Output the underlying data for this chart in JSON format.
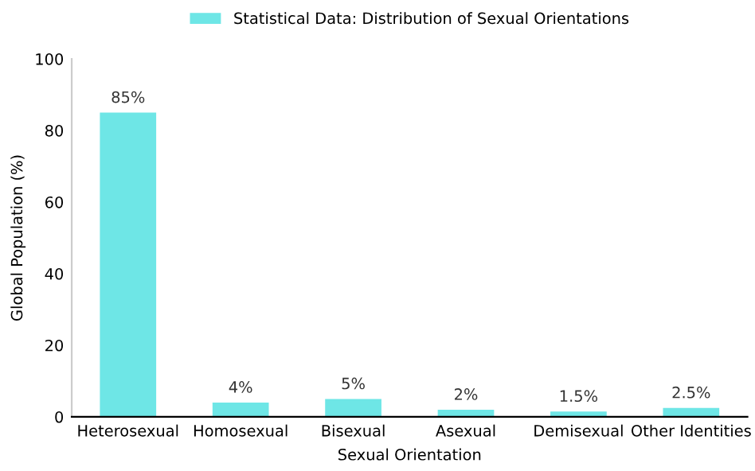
{
  "chart_data": {
    "type": "bar",
    "xlabel": "Sexual Orientation",
    "ylabel": "Global Population (%)",
    "categories": [
      "Heterosexual",
      "Homosexual",
      "Bisexual",
      "Asexual",
      "Demisexual",
      "Other Identities"
    ],
    "series": [
      {
        "name": "Statistical Data: Distribution of Sexual Orientations",
        "color": "#6ee6e6",
        "values": [
          85,
          4,
          5,
          2,
          1.5,
          2.5
        ],
        "value_labels": [
          "85%",
          "4%",
          "5%",
          "2%",
          "1.5%",
          "2.5%"
        ]
      }
    ],
    "ylim": [
      0,
      100
    ],
    "yticks": [
      0,
      20,
      40,
      60,
      80,
      100
    ],
    "legend": "top",
    "grid": false
  }
}
